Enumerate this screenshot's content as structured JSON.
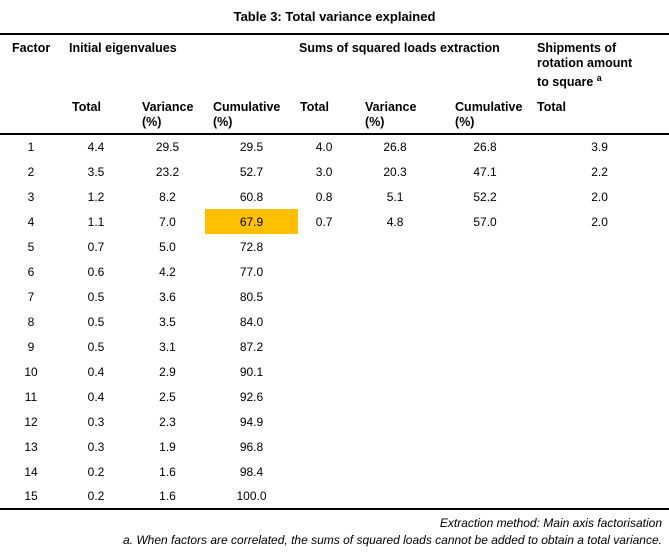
{
  "title": "Table 3: Total variance explained",
  "colors": {
    "highlight": "#FFC000",
    "text": "#000000",
    "rule": "#000000",
    "background": "#FFFFFF"
  },
  "table": {
    "group_headers": {
      "factor": "Factor",
      "initial": "Initial eigenvalues",
      "extraction": "Sums of squared loads extraction",
      "rotation": "Shipments of rotation amount to square",
      "rotation_superscript": "a"
    },
    "sub_headers": [
      {
        "label": "Total",
        "unit": ""
      },
      {
        "label": "Variance",
        "unit": "(%)"
      },
      {
        "label": "Cumulative",
        "unit": "(%)"
      },
      {
        "label": "Total",
        "unit": ""
      },
      {
        "label": "Variance",
        "unit": "(%)"
      },
      {
        "label": "Cumulative",
        "unit": "(%)"
      },
      {
        "label": "Total",
        "unit": ""
      }
    ],
    "rows": [
      [
        "1",
        "4.4",
        "29.5",
        "29.5",
        "4.0",
        "26.8",
        "26.8",
        "3.9"
      ],
      [
        "2",
        "3.5",
        "23.2",
        "52.7",
        "3.0",
        "20.3",
        "47.1",
        "2.2"
      ],
      [
        "3",
        "1.2",
        "8.2",
        "60.8",
        "0.8",
        "5.1",
        "52.2",
        "2.0"
      ],
      [
        "4",
        "1.1",
        "7.0",
        "67.9",
        "0.7",
        "4.8",
        "57.0",
        "2.0"
      ],
      [
        "5",
        "0.7",
        "5.0",
        "72.8",
        "",
        "",
        "",
        ""
      ],
      [
        "6",
        "0.6",
        "4.2",
        "77.0",
        "",
        "",
        "",
        ""
      ],
      [
        "7",
        "0.5",
        "3.6",
        "80.5",
        "",
        "",
        "",
        ""
      ],
      [
        "8",
        "0.5",
        "3.5",
        "84.0",
        "",
        "",
        "",
        ""
      ],
      [
        "9",
        "0.5",
        "3.1",
        "87.2",
        "",
        "",
        "",
        ""
      ],
      [
        "10",
        "0.4",
        "2.9",
        "90.1",
        "",
        "",
        "",
        ""
      ],
      [
        "11",
        "0.4",
        "2.5",
        "92.6",
        "",
        "",
        "",
        ""
      ],
      [
        "12",
        "0.3",
        "2.3",
        "94.9",
        "",
        "",
        "",
        ""
      ],
      [
        "13",
        "0.3",
        "1.9",
        "96.8",
        "",
        "",
        "",
        ""
      ],
      [
        "14",
        "0.2",
        "1.6",
        "98.4",
        "",
        "",
        "",
        ""
      ],
      [
        "15",
        "0.2",
        "1.6",
        "100.0",
        "",
        "",
        "",
        ""
      ]
    ],
    "highlight": {
      "row_index": 3,
      "cell_index": 3,
      "value": "67.9"
    }
  },
  "footnotes": {
    "extraction_method": "Extraction method: Main axis factorisation",
    "note_a": "a. When factors are correlated, the sums of squared loads cannot be added to obtain a total variance."
  }
}
